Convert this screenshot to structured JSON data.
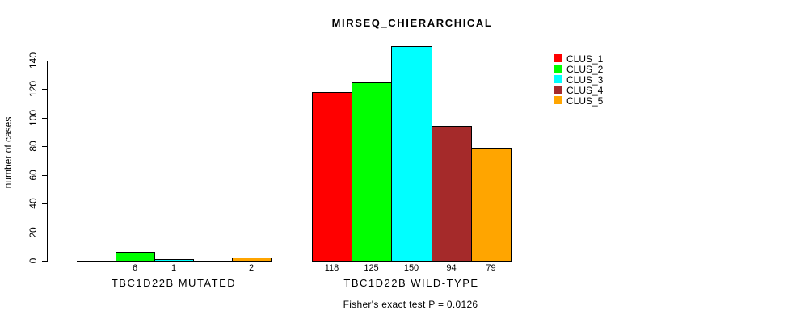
{
  "title": "MIRSEQ_CHIERARCHICAL",
  "chart_data": {
    "type": "bar",
    "title": "MIRSEQ_CHIERARCHICAL",
    "ylabel": "number of cases",
    "xlabel": "",
    "ylim": [
      0,
      140
    ],
    "yticks": [
      0,
      20,
      40,
      60,
      80,
      100,
      120,
      140
    ],
    "grid": false,
    "legend_position": "top-right",
    "categories": [
      "TBC1D22B MUTATED",
      "TBC1D22B WILD-TYPE"
    ],
    "series": [
      {
        "name": "CLUS_1",
        "color": "#FF0000",
        "values": [
          0,
          118
        ]
      },
      {
        "name": "CLUS_2",
        "color": "#00FF00",
        "values": [
          6,
          125
        ]
      },
      {
        "name": "CLUS_3",
        "color": "#00FFFF",
        "values": [
          1,
          150
        ]
      },
      {
        "name": "CLUS_4",
        "color": "#A52A2A",
        "values": [
          0,
          94
        ]
      },
      {
        "name": "CLUS_5",
        "color": "#FFA500",
        "values": [
          2,
          79
        ]
      }
    ],
    "bar_value_labels": [
      [
        "",
        "6",
        "1",
        "",
        "2"
      ],
      [
        "118",
        "125",
        "150",
        "94",
        "79"
      ]
    ],
    "footnote": "Fisher's exact test P = 0.0126"
  }
}
